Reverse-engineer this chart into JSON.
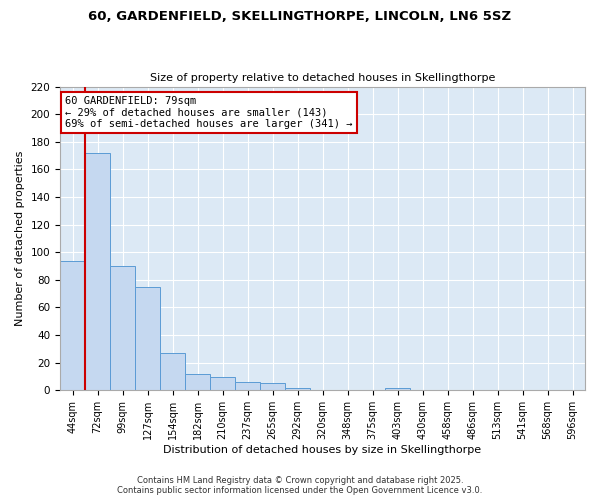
{
  "title": "60, GARDENFIELD, SKELLINGTHORPE, LINCOLN, LN6 5SZ",
  "subtitle": "Size of property relative to detached houses in Skellingthorpe",
  "xlabel": "Distribution of detached houses by size in Skellingthorpe",
  "ylabel": "Number of detached properties",
  "bar_values": [
    94,
    172,
    90,
    75,
    27,
    12,
    10,
    6,
    5,
    2,
    0,
    0,
    0,
    2,
    0,
    0,
    0,
    0,
    0,
    0,
    0
  ],
  "categories": [
    "44sqm",
    "72sqm",
    "99sqm",
    "127sqm",
    "154sqm",
    "182sqm",
    "210sqm",
    "237sqm",
    "265sqm",
    "292sqm",
    "320sqm",
    "348sqm",
    "375sqm",
    "403sqm",
    "430sqm",
    "458sqm",
    "486sqm",
    "513sqm",
    "541sqm",
    "568sqm",
    "596sqm"
  ],
  "bar_color": "#c5d8f0",
  "bar_edge_color": "#5b9bd5",
  "fig_bg_color": "#ffffff",
  "plot_bg_color": "#dce9f5",
  "grid_color": "#ffffff",
  "vline_color": "#cc0000",
  "vline_x_index": 1,
  "ylim": [
    0,
    220
  ],
  "yticks": [
    0,
    20,
    40,
    60,
    80,
    100,
    120,
    140,
    160,
    180,
    200,
    220
  ],
  "annotation_line1": "60 GARDENFIELD: 79sqm",
  "annotation_line2": "← 29% of detached houses are smaller (143)",
  "annotation_line3": "69% of semi-detached houses are larger (341) →",
  "annotation_box_color": "#ffffff",
  "annotation_box_edge": "#cc0000",
  "footer_line1": "Contains HM Land Registry data © Crown copyright and database right 2025.",
  "footer_line2": "Contains public sector information licensed under the Open Government Licence v3.0."
}
